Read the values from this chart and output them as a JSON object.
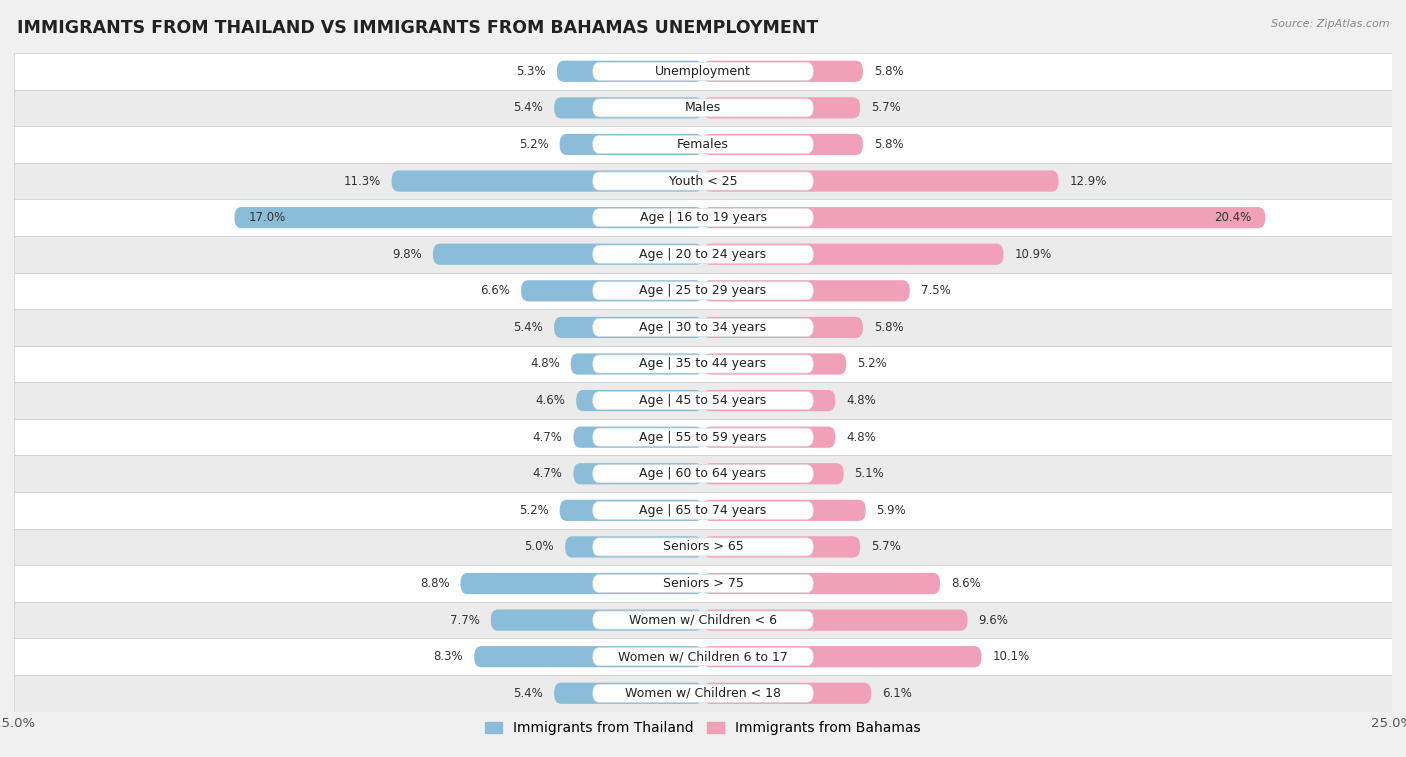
{
  "title": "IMMIGRANTS FROM THAILAND VS IMMIGRANTS FROM BAHAMAS UNEMPLOYMENT",
  "source": "Source: ZipAtlas.com",
  "categories": [
    "Unemployment",
    "Males",
    "Females",
    "Youth < 25",
    "Age | 16 to 19 years",
    "Age | 20 to 24 years",
    "Age | 25 to 29 years",
    "Age | 30 to 34 years",
    "Age | 35 to 44 years",
    "Age | 45 to 54 years",
    "Age | 55 to 59 years",
    "Age | 60 to 64 years",
    "Age | 65 to 74 years",
    "Seniors > 65",
    "Seniors > 75",
    "Women w/ Children < 6",
    "Women w/ Children 6 to 17",
    "Women w/ Children < 18"
  ],
  "thailand_values": [
    5.3,
    5.4,
    5.2,
    11.3,
    17.0,
    9.8,
    6.6,
    5.4,
    4.8,
    4.6,
    4.7,
    4.7,
    5.2,
    5.0,
    8.8,
    7.7,
    8.3,
    5.4
  ],
  "bahamas_values": [
    5.8,
    5.7,
    5.8,
    12.9,
    20.4,
    10.9,
    7.5,
    5.8,
    5.2,
    4.8,
    4.8,
    5.1,
    5.9,
    5.7,
    8.6,
    9.6,
    10.1,
    6.1
  ],
  "thailand_color": "#8bbdd9",
  "bahamas_color": "#f0a0b8",
  "axis_limit": 25.0,
  "bar_height": 0.58,
  "bg_color": "#f0f0f0",
  "row_colors": [
    "#ffffff",
    "#ebebeb"
  ],
  "title_fontsize": 13,
  "label_fontsize": 9.0,
  "value_fontsize": 8.5,
  "legend_fontsize": 10
}
